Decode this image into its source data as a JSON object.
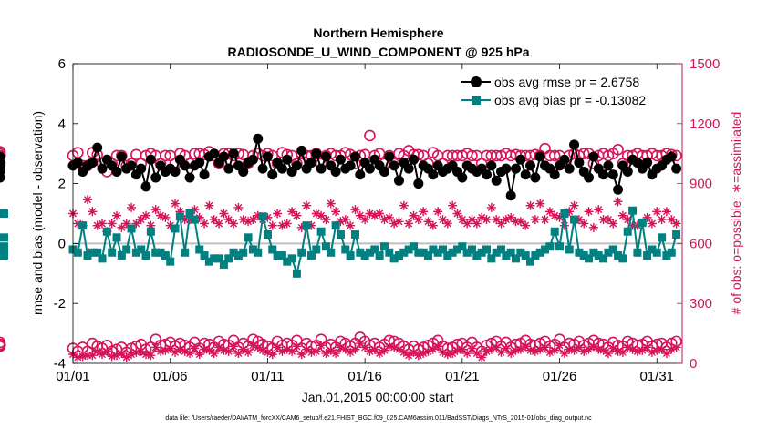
{
  "chart_data": {
    "type": "line",
    "title": "Northern Hemisphere",
    "subtitle": "RADIOSONDE_U_WIND_COMPONENT @ 925 hPa",
    "xlabel": "Jan.01,2015 00:00:00 start",
    "ylabel_left": "rmse and bias (model - observation)",
    "ylabel_right": "# of obs: o=possible; ∗=assimilated",
    "footnote": "data file: /Users/raeder/DAI/ATM_forcXX/CAM6_setup/f.e21.FHIST_BGC.f09_025.CAM6assim.011/BadSST/Diags_NTrS_2015-01/obs_diag_output.nc",
    "x_range": [
      1,
      32.3
    ],
    "x_ticks": [
      1,
      6,
      11,
      16,
      21,
      26,
      31
    ],
    "x_tick_labels": [
      "01/01",
      "01/06",
      "01/11",
      "01/16",
      "01/21",
      "01/26",
      "01/31"
    ],
    "ylim_left": [
      -4,
      6
    ],
    "yticks_left": [
      -4,
      -2,
      0,
      2,
      4,
      6
    ],
    "ylim_right": [
      0,
      1500
    ],
    "yticks_right": [
      0,
      300,
      600,
      900,
      1200,
      1500
    ],
    "legend": [
      {
        "label": "obs avg rmse pr = 2.6758",
        "marker": "circle",
        "color": "#000000"
      },
      {
        "label": "obs avg bias pr = -0.13082",
        "marker": "square",
        "color": "#008080"
      }
    ],
    "legend_position": "top-right",
    "colors": {
      "rmse": "#000000",
      "bias": "#008080",
      "obs": "#D6145A",
      "zero_line": "#bfbfbf"
    },
    "x": [
      1.0,
      1.25,
      1.5,
      1.75,
      2.0,
      2.25,
      2.5,
      2.75,
      3.0,
      3.25,
      3.5,
      3.75,
      4.0,
      4.25,
      4.5,
      4.75,
      5.0,
      5.25,
      5.5,
      5.75,
      6.0,
      6.25,
      6.5,
      6.75,
      7.0,
      7.25,
      7.5,
      7.75,
      8.0,
      8.25,
      8.5,
      8.75,
      9.0,
      9.25,
      9.5,
      9.75,
      10.0,
      10.25,
      10.5,
      10.75,
      11.0,
      11.25,
      11.5,
      11.75,
      12.0,
      12.25,
      12.5,
      12.75,
      13.0,
      13.25,
      13.5,
      13.75,
      14.0,
      14.25,
      14.5,
      14.75,
      15.0,
      15.25,
      15.5,
      15.75,
      16.0,
      16.25,
      16.5,
      16.75,
      17.0,
      17.25,
      17.5,
      17.75,
      18.0,
      18.25,
      18.5,
      18.75,
      19.0,
      19.25,
      19.5,
      19.75,
      20.0,
      20.25,
      20.5,
      20.75,
      21.0,
      21.25,
      21.5,
      21.75,
      22.0,
      22.25,
      22.5,
      22.75,
      23.0,
      23.25,
      23.5,
      23.75,
      24.0,
      24.25,
      24.5,
      24.75,
      25.0,
      25.25,
      25.5,
      25.75,
      26.0,
      26.25,
      26.5,
      26.75,
      27.0,
      27.25,
      27.5,
      27.75,
      28.0,
      28.25,
      28.5,
      28.75,
      29.0,
      29.25,
      29.5,
      29.75,
      30.0,
      30.25,
      30.5,
      30.75,
      31.0,
      31.25,
      31.5,
      31.75,
      32.0
    ],
    "rmse": [
      2.6,
      2.7,
      2.4,
      2.6,
      2.7,
      3.2,
      2.5,
      2.8,
      2.6,
      2.4,
      2.9,
      2.5,
      2.6,
      2.3,
      2.5,
      1.9,
      2.8,
      2.2,
      2.6,
      2.4,
      2.5,
      2.4,
      2.8,
      2.6,
      2.2,
      2.6,
      2.7,
      2.3,
      2.9,
      3.0,
      2.7,
      2.9,
      2.5,
      3.0,
      2.6,
      2.4,
      2.7,
      2.8,
      3.5,
      2.5,
      2.9,
      2.3,
      2.7,
      2.5,
      2.8,
      2.4,
      2.6,
      3.1,
      2.5,
      2.7,
      3.0,
      2.5,
      2.9,
      2.6,
      2.4,
      2.8,
      2.5,
      2.6,
      2.9,
      2.3,
      2.7,
      2.5,
      2.8,
      2.6,
      2.4,
      2.9,
      2.6,
      2.1,
      2.7,
      2.5,
      2.8,
      2.0,
      2.6,
      2.5,
      2.3,
      2.6,
      2.4,
      2.5,
      2.6,
      2.4,
      2.2,
      2.6,
      2.5,
      2.4,
      2.5,
      2.3,
      2.6,
      2.1,
      2.4,
      2.5,
      1.6,
      2.5,
      2.8,
      2.3,
      2.6,
      2.2,
      2.9,
      2.6,
      2.5,
      2.3,
      2.6,
      2.8,
      2.5,
      3.3,
      2.7,
      2.4,
      2.2,
      2.9,
      2.5,
      2.3,
      2.6,
      2.3,
      1.8,
      2.6,
      2.4,
      2.8,
      2.7,
      2.5,
      2.7,
      2.3,
      2.5,
      2.6,
      2.8,
      2.9,
      2.5,
      2.7,
      2.4,
      2.6,
      2.9,
      2.5,
      2.2
    ],
    "bias": [
      -0.2,
      -0.3,
      0.6,
      -0.4,
      -0.3,
      -0.3,
      -0.5,
      0.4,
      -0.3,
      0.2,
      -0.4,
      -0.2,
      0.5,
      -0.3,
      -0.2,
      -0.4,
      0.4,
      -0.3,
      -0.3,
      -0.4,
      -0.6,
      0.5,
      0.9,
      -0.3,
      1.0,
      0.8,
      -0.2,
      -0.4,
      -0.6,
      -0.5,
      -0.5,
      -0.7,
      -0.5,
      -0.3,
      -0.4,
      -0.3,
      0.2,
      -0.2,
      -0.3,
      0.9,
      0.3,
      -0.2,
      -0.4,
      -0.4,
      -0.6,
      -0.5,
      -1.0,
      -0.3,
      0.6,
      -0.4,
      -0.2,
      0.4,
      -0.1,
      -0.3,
      0.6,
      0.3,
      -0.2,
      -0.4,
      0.3,
      -0.3,
      -0.4,
      -0.3,
      -0.2,
      -0.4,
      -0.1,
      -0.3,
      -0.5,
      -0.4,
      -0.3,
      -0.2,
      -0.1,
      -0.3,
      -0.3,
      -0.4,
      -0.2,
      -0.3,
      -0.2,
      -0.4,
      -0.3,
      -0.2,
      -0.1,
      -0.3,
      -0.2,
      -0.4,
      -0.3,
      -0.2,
      -0.5,
      -0.3,
      -0.2,
      -0.4,
      -0.3,
      -0.5,
      -0.3,
      -0.4,
      -0.6,
      -0.4,
      -0.3,
      -0.2,
      -0.1,
      0.4,
      -0.1,
      1.0,
      -0.2,
      0.8,
      -0.3,
      -0.4,
      -0.5,
      -0.3,
      -0.4,
      -0.5,
      -0.3,
      -0.2,
      -0.4,
      -0.5,
      0.4,
      1.1,
      -0.3,
      0.7,
      -0.4,
      -0.2,
      -0.3,
      0.2,
      -0.4,
      -0.3,
      0.3,
      -0.2,
      -0.1,
      -0.3,
      -0.2,
      0.2,
      1.0,
      -0.3,
      -0.4
    ],
    "obs_possible": [
      1040,
      1055,
      990,
      990,
      1055,
      1045,
      1000,
      960,
      1000,
      1040,
      1040,
      990,
      1000,
      1045,
      1000,
      1040,
      1050,
      1040,
      1000,
      1040,
      1040,
      1000,
      1050,
      1040,
      1000,
      1050,
      1050,
      1045,
      1060,
      1040,
      1000,
      1050,
      1050,
      1040,
      1050,
      1045,
      1000,
      1040,
      1050,
      1040,
      1050,
      1040,
      1000,
      1055,
      1045,
      1040,
      1000,
      1050,
      1040,
      1040,
      1050,
      1000,
      1040,
      1050,
      1040,
      1040,
      1055,
      1045,
      1000,
      1040,
      1045,
      1140,
      1040,
      1050,
      1000,
      1040,
      1000,
      1050,
      1040,
      1065,
      1045,
      1045,
      1040,
      1000,
      1055,
      1040,
      1000,
      1040,
      1040,
      1040,
      1040,
      1050,
      1040,
      1040,
      1000,
      1040,
      1040,
      1040,
      1040,
      1050,
      1040,
      1045,
      1040,
      1040,
      1040,
      1045,
      1040,
      1075,
      1040,
      1040,
      1040,
      1000,
      1040,
      1050,
      1040,
      1050,
      1050,
      1000,
      1040,
      1050,
      1040,
      1050,
      1070,
      1000,
      1040,
      1040,
      1050,
      1040,
      1040,
      1050,
      1040,
      1040,
      1050,
      1045,
      1040,
      1040,
      1040,
      1050,
      1040,
      1040,
      1040,
      1000,
      1060
    ],
    "obs_assimilated": [
      750,
      700,
      690,
      820,
      760,
      690,
      700,
      660,
      700,
      740,
      680,
      700,
      780,
      700,
      720,
      740,
      690,
      770,
      740,
      730,
      690,
      800,
      760,
      720,
      720,
      770,
      730,
      700,
      790,
      720,
      700,
      750,
      720,
      700,
      780,
      720,
      710,
      720,
      740,
      720,
      730,
      690,
      750,
      690,
      700,
      760,
      740,
      680,
      790,
      690,
      750,
      740,
      720,
      800,
      760,
      710,
      720,
      690,
      770,
      740,
      720,
      750,
      740,
      750,
      720,
      730,
      700,
      710,
      790,
      700,
      740,
      720,
      760,
      710,
      690,
      760,
      720,
      700,
      790,
      750,
      720,
      700,
      720,
      700,
      730,
      720,
      780,
      720,
      700,
      720,
      730,
      710,
      710,
      690,
      790,
      720,
      800,
      720,
      760,
      740,
      730,
      690,
      760,
      790,
      720,
      700,
      760,
      680,
      770,
      720,
      720,
      700,
      810,
      740,
      720,
      690,
      690,
      700,
      730,
      700,
      760,
      720,
      760,
      720,
      700,
      690,
      700,
      690,
      700,
      720,
      800
    ],
    "obs_possible_low": [
      75,
      60,
      80,
      60,
      100,
      85,
      75,
      90,
      60,
      70,
      80,
      55,
      75,
      85,
      95,
      70,
      80,
      120,
      90,
      95,
      105,
      85,
      100,
      90,
      80,
      105,
      75,
      100,
      95,
      80,
      110,
      95,
      90,
      115,
      80,
      100,
      85,
      120,
      110,
      95,
      85,
      75,
      110,
      90,
      100,
      90,
      115,
      75,
      100,
      85,
      90,
      120,
      80,
      95,
      80,
      110,
      100,
      85,
      100,
      130,
      110,
      90,
      100,
      80,
      95,
      115,
      110,
      100,
      85,
      70,
      85,
      70,
      80,
      90,
      100,
      115,
      85,
      75,
      80,
      95,
      100,
      80,
      105,
      80,
      60,
      90,
      100,
      110,
      85,
      105,
      80,
      95,
      100,
      115,
      95,
      90,
      100,
      110,
      85,
      95,
      120,
      80,
      100,
      95,
      110,
      90,
      100,
      115,
      100,
      95,
      80,
      105,
      90,
      85,
      110,
      100,
      90,
      95,
      110,
      85,
      95,
      100,
      80,
      100,
      110,
      95,
      90,
      105,
      90,
      95,
      85
    ],
    "obs_assimilated_low": [
      45,
      30,
      35,
      40,
      40,
      60,
      45,
      60,
      35,
      40,
      50,
      30,
      45,
      55,
      60,
      45,
      40,
      80,
      60,
      65,
      75,
      55,
      70,
      60,
      50,
      75,
      45,
      70,
      65,
      50,
      80,
      65,
      60,
      85,
      50,
      70,
      55,
      90,
      80,
      65,
      55,
      45,
      80,
      60,
      70,
      60,
      85,
      45,
      70,
      55,
      60,
      90,
      50,
      65,
      50,
      80,
      70,
      55,
      70,
      100,
      80,
      60,
      70,
      50,
      65,
      85,
      80,
      70,
      55,
      40,
      55,
      40,
      50,
      60,
      70,
      85,
      55,
      45,
      50,
      65,
      70,
      50,
      75,
      50,
      30,
      60,
      70,
      80,
      55,
      75,
      50,
      65,
      70,
      85,
      65,
      60,
      70,
      80,
      55,
      65,
      90,
      50,
      70,
      65,
      80,
      60,
      70,
      85,
      70,
      65,
      50,
      75,
      60,
      55,
      80,
      70,
      60,
      65,
      80,
      55,
      65,
      70,
      50,
      70,
      80,
      65,
      60,
      75,
      60,
      65,
      55
    ]
  }
}
